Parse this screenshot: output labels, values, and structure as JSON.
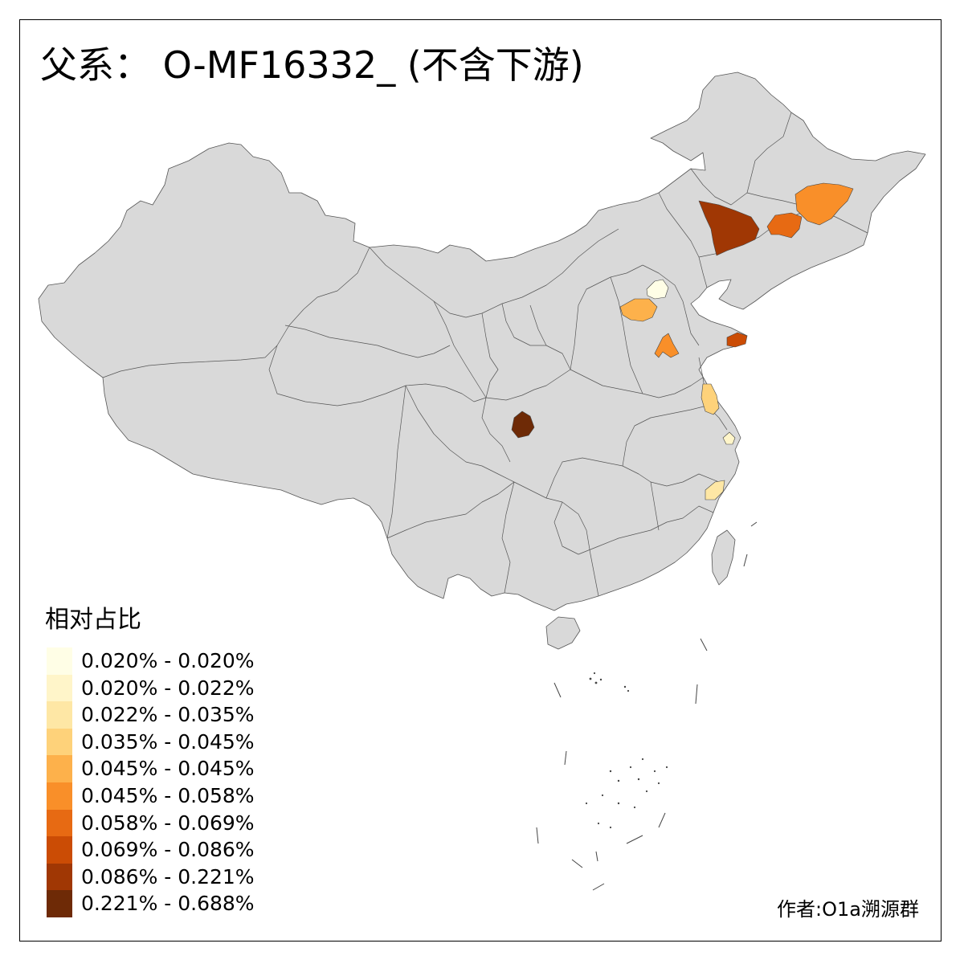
{
  "title": "父系： O-MF16332_ (不含下游)",
  "legend": {
    "title": "相对占比",
    "items": [
      {
        "label": "0.020% - 0.020%",
        "color": "#FFFEE6"
      },
      {
        "label": "0.020% - 0.022%",
        "color": "#FFF5C9"
      },
      {
        "label": "0.022% - 0.035%",
        "color": "#FEE7A5"
      },
      {
        "label": "0.035% - 0.045%",
        "color": "#FED27A"
      },
      {
        "label": "0.045% - 0.045%",
        "color": "#FDB14B"
      },
      {
        "label": "0.045% - 0.058%",
        "color": "#F98F29"
      },
      {
        "label": "0.058% - 0.069%",
        "color": "#E76A13"
      },
      {
        "label": "0.069% - 0.086%",
        "color": "#CB4C05"
      },
      {
        "label": "0.086% - 0.221%",
        "color": "#A03704"
      },
      {
        "label": "0.221% - 0.688%",
        "color": "#6E2A06"
      }
    ]
  },
  "credit": "作者:O1a溯源群",
  "colors": {
    "base_land": "#D9D9D9",
    "border": "#555555"
  }
}
